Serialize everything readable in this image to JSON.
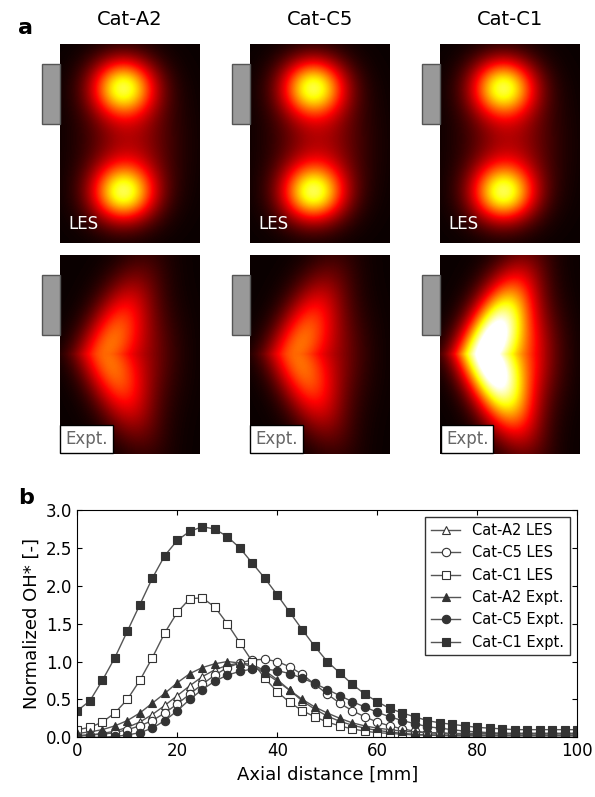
{
  "panel_a": {
    "label": "a",
    "columns": [
      "Cat-A2",
      "Cat-C5",
      "Cat-C1"
    ],
    "rows": [
      "LES",
      "Expt."
    ]
  },
  "chart_data": {
    "label": "b",
    "type": "line",
    "xlabel": "Axial distance [mm]",
    "ylabel": "Normalized OH* [-]",
    "xlim": [
      0,
      100
    ],
    "ylim": [
      0,
      3.0
    ],
    "xticks": [
      0,
      20,
      40,
      60,
      80,
      100
    ],
    "yticks": [
      {
        "value": 0,
        "label": "0.0"
      },
      {
        "value": 0.5,
        "label": "0.5"
      },
      {
        "value": 1.0,
        "label": "1.0"
      },
      {
        "value": 1.5,
        "label": "1.5"
      },
      {
        "value": 2.0,
        "label": "2.0"
      },
      {
        "value": 2.5,
        "label": "2.5"
      },
      {
        "value": 3.0,
        "label": "3.0"
      }
    ],
    "legend": "upper right",
    "color": "#555555",
    "x": [
      0,
      2.5,
      5,
      7.5,
      10,
      12.5,
      15,
      17.5,
      20,
      22.5,
      25,
      27.5,
      30,
      32.5,
      35,
      37.5,
      40,
      42.5,
      45,
      47.5,
      50,
      52.5,
      55,
      57.5,
      60,
      62.5,
      65,
      67.5,
      70,
      72.5,
      75,
      77.5,
      80,
      82.5,
      85,
      87.5,
      90,
      92.5,
      95,
      97.5,
      100
    ],
    "series": [
      {
        "name": "Cat-A2 LES",
        "marker": "triangle_open",
        "values": [
          0.02,
          0.03,
          0.05,
          0.08,
          0.13,
          0.2,
          0.3,
          0.42,
          0.55,
          0.68,
          0.8,
          0.89,
          0.95,
          0.98,
          0.96,
          0.88,
          0.76,
          0.62,
          0.48,
          0.37,
          0.28,
          0.21,
          0.16,
          0.12,
          0.09,
          0.07,
          0.05,
          0.04,
          0.03,
          0.03,
          0.02,
          0.02,
          0.02,
          0.02,
          0.02,
          0.02,
          0.02,
          0.02,
          0.02,
          0.02,
          0.02
        ]
      },
      {
        "name": "Cat-C5 LES",
        "marker": "circle_open",
        "values": [
          0.02,
          0.03,
          0.04,
          0.06,
          0.1,
          0.15,
          0.22,
          0.32,
          0.44,
          0.57,
          0.7,
          0.82,
          0.92,
          0.98,
          1.02,
          1.03,
          1.0,
          0.93,
          0.83,
          0.7,
          0.57,
          0.45,
          0.35,
          0.27,
          0.2,
          0.15,
          0.11,
          0.08,
          0.06,
          0.05,
          0.04,
          0.04,
          0.03,
          0.03,
          0.03,
          0.03,
          0.03,
          0.03,
          0.03,
          0.03,
          0.03
        ]
      },
      {
        "name": "Cat-C1 LES",
        "marker": "square_open",
        "values": [
          0.1,
          0.13,
          0.2,
          0.32,
          0.5,
          0.75,
          1.05,
          1.38,
          1.65,
          1.83,
          1.84,
          1.72,
          1.5,
          1.25,
          1.0,
          0.78,
          0.6,
          0.46,
          0.35,
          0.27,
          0.2,
          0.15,
          0.11,
          0.08,
          0.06,
          0.05,
          0.04,
          0.03,
          0.03,
          0.02,
          0.02,
          0.02,
          0.02,
          0.02,
          0.02,
          0.02,
          0.02,
          0.02,
          0.02,
          0.02,
          0.02
        ]
      },
      {
        "name": "Cat-A2 Expt.",
        "marker": "triangle_filled",
        "values": [
          0.05,
          0.07,
          0.1,
          0.15,
          0.22,
          0.32,
          0.45,
          0.58,
          0.72,
          0.84,
          0.92,
          0.97,
          1.0,
          0.98,
          0.93,
          0.85,
          0.74,
          0.62,
          0.5,
          0.4,
          0.32,
          0.25,
          0.19,
          0.15,
          0.12,
          0.1,
          0.08,
          0.07,
          0.06,
          0.06,
          0.05,
          0.05,
          0.05,
          0.05,
          0.05,
          0.05,
          0.05,
          0.05,
          0.05,
          0.05,
          0.05
        ]
      },
      {
        "name": "Cat-C5 Expt.",
        "marker": "circle_filled",
        "values": [
          0.0,
          0.0,
          0.0,
          0.01,
          0.03,
          0.06,
          0.12,
          0.22,
          0.35,
          0.5,
          0.63,
          0.74,
          0.82,
          0.87,
          0.9,
          0.9,
          0.88,
          0.84,
          0.78,
          0.71,
          0.63,
          0.55,
          0.47,
          0.4,
          0.33,
          0.27,
          0.22,
          0.18,
          0.14,
          0.12,
          0.1,
          0.08,
          0.07,
          0.06,
          0.05,
          0.05,
          0.05,
          0.05,
          0.05,
          0.05,
          0.05
        ]
      },
      {
        "name": "Cat-C1 Expt.",
        "marker": "square_filled",
        "values": [
          0.35,
          0.48,
          0.75,
          1.05,
          1.4,
          1.75,
          2.1,
          2.4,
          2.6,
          2.72,
          2.78,
          2.75,
          2.65,
          2.5,
          2.3,
          2.1,
          1.88,
          1.65,
          1.42,
          1.2,
          1.0,
          0.85,
          0.7,
          0.57,
          0.47,
          0.38,
          0.32,
          0.27,
          0.22,
          0.19,
          0.17,
          0.15,
          0.13,
          0.12,
          0.11,
          0.1,
          0.1,
          0.1,
          0.1,
          0.1,
          0.1
        ]
      }
    ]
  }
}
